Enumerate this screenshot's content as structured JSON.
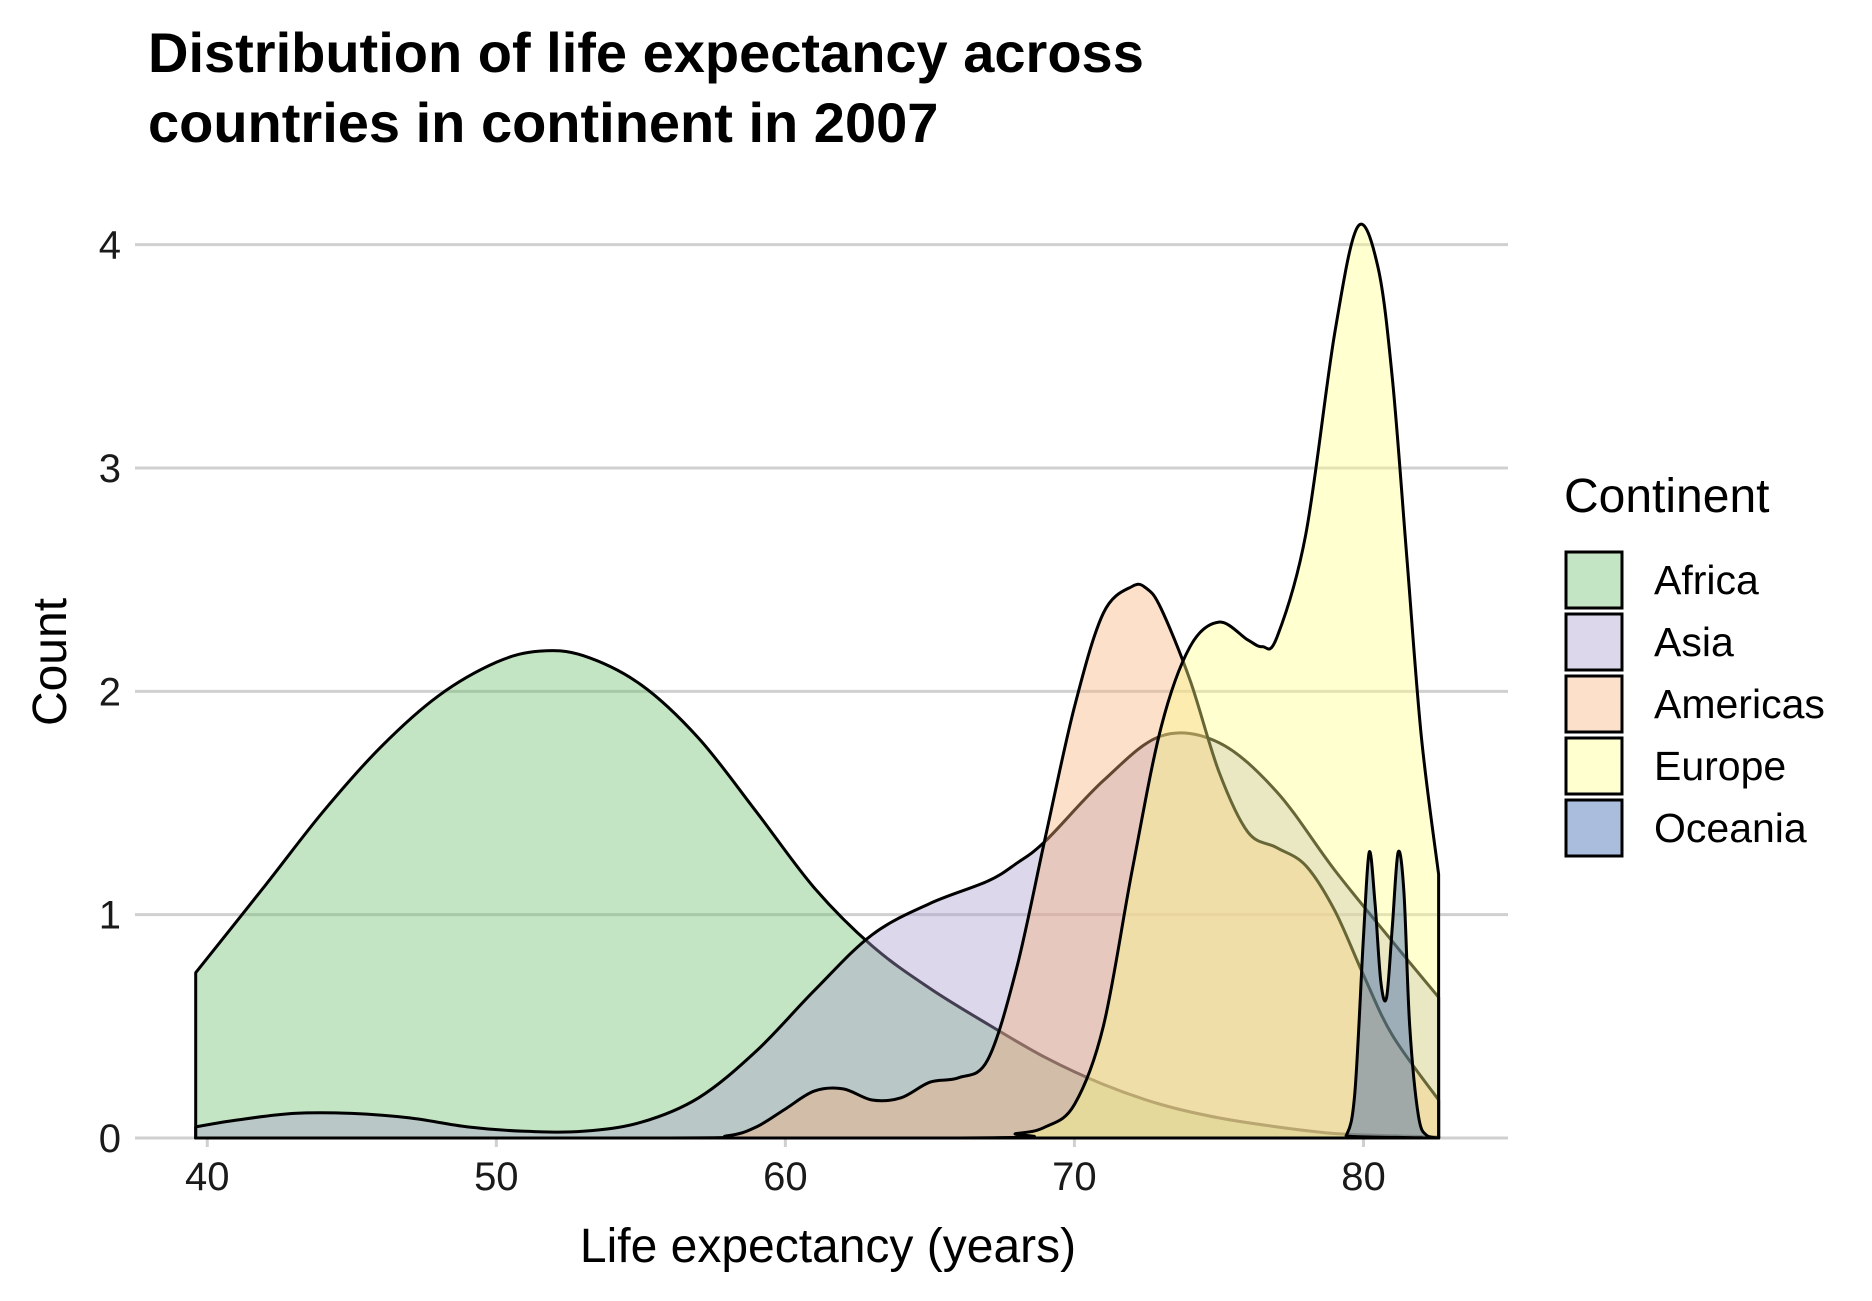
{
  "chart_data": {
    "type": "area",
    "subtype": "density",
    "title_lines": [
      "Distribution of life expectancy across",
      "countries in continent in 2007"
    ],
    "xlabel": "Life expectancy (years)",
    "ylabel": "Count",
    "xlim": [
      37.5,
      85
    ],
    "ylim": [
      0,
      4.2
    ],
    "x_ticks": [
      40,
      50,
      60,
      70,
      80
    ],
    "y_ticks": [
      0,
      1,
      2,
      3,
      4
    ],
    "grid": "horizontal-major",
    "fill_opacity": 0.4,
    "legend": {
      "title": "Continent",
      "position": "right",
      "items": [
        {
          "label": "Africa",
          "color": "#6ABE6A"
        },
        {
          "label": "Asia",
          "color": "#AB9ACD"
        },
        {
          "label": "Americas",
          "color": "#F7B27A"
        },
        {
          "label": "Europe",
          "color": "#FFFF86"
        },
        {
          "label": "Oceania",
          "color": "#2A5AA8"
        }
      ]
    },
    "series": [
      {
        "name": "Africa",
        "color": "#6ABE6A",
        "x": [
          39.6,
          42,
          44,
          46,
          48,
          50,
          51.5,
          53,
          55,
          57,
          59,
          61,
          63,
          65,
          67,
          69,
          71,
          73,
          75,
          77,
          79,
          81,
          82.6
        ],
        "y": [
          0.74,
          1.13,
          1.46,
          1.75,
          1.98,
          2.13,
          2.18,
          2.16,
          2.03,
          1.79,
          1.46,
          1.12,
          0.86,
          0.67,
          0.51,
          0.36,
          0.24,
          0.15,
          0.09,
          0.05,
          0.02,
          0.01,
          0.005
        ]
      },
      {
        "name": "Asia",
        "color": "#AB9ACD",
        "x": [
          39.6,
          41,
          43,
          45,
          47,
          49,
          51,
          53,
          55,
          57,
          59,
          61,
          63,
          65,
          67,
          68,
          69,
          71,
          73,
          75,
          77,
          79,
          81,
          82.6
        ],
        "y": [
          0.05,
          0.08,
          0.11,
          0.11,
          0.09,
          0.05,
          0.03,
          0.03,
          0.07,
          0.18,
          0.39,
          0.66,
          0.91,
          1.05,
          1.15,
          1.23,
          1.33,
          1.6,
          1.8,
          1.77,
          1.55,
          1.2,
          0.88,
          0.63
        ]
      },
      {
        "name": "Americas",
        "color": "#F7B27A",
        "x": [
          39.6,
          56,
          58,
          59,
          60,
          61,
          62,
          63,
          64,
          65,
          66,
          67,
          68,
          69,
          70,
          71,
          72,
          72.5,
          73,
          74,
          75,
          76,
          77,
          78,
          79,
          80,
          81,
          82.6
        ],
        "y": [
          0,
          0,
          0.01,
          0.05,
          0.13,
          0.21,
          0.22,
          0.17,
          0.18,
          0.25,
          0.27,
          0.35,
          0.76,
          1.35,
          1.93,
          2.35,
          2.47,
          2.46,
          2.37,
          2.05,
          1.64,
          1.37,
          1.3,
          1.22,
          1.02,
          0.73,
          0.46,
          0.17
        ]
      },
      {
        "name": "Europe",
        "color": "#FFFF86",
        "x": [
          39.6,
          66,
          68,
          69,
          70,
          71,
          72,
          73,
          74,
          75,
          76,
          76.5,
          77,
          78,
          79,
          79.8,
          80.5,
          81,
          81.5,
          82,
          82.6
        ],
        "y": [
          0,
          0,
          0.02,
          0.05,
          0.15,
          0.5,
          1.2,
          1.84,
          2.2,
          2.31,
          2.23,
          2.2,
          2.24,
          2.7,
          3.6,
          4.08,
          3.9,
          3.4,
          2.6,
          1.8,
          1.18
        ]
      },
      {
        "name": "Oceania",
        "color": "#2A5AA8",
        "x": [
          39.6,
          79,
          79.4,
          79.7,
          80,
          80.2,
          80.4,
          80.6,
          80.8,
          81,
          81.2,
          81.4,
          81.6,
          81.9,
          82.2,
          82.6
        ],
        "y": [
          0,
          0,
          0.01,
          0.2,
          0.9,
          1.28,
          1.05,
          0.7,
          0.63,
          0.95,
          1.28,
          1.1,
          0.5,
          0.1,
          0.01,
          0
        ]
      }
    ]
  }
}
